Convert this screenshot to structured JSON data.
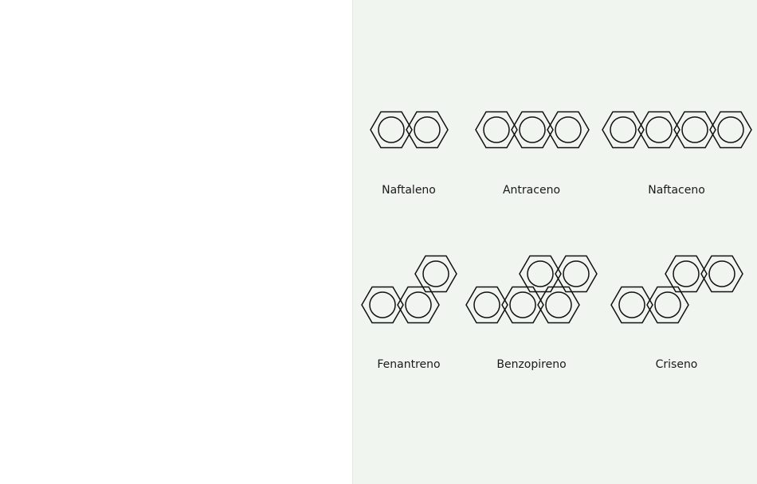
{
  "diagram": {
    "molecules": [
      {
        "id": "naftaleno",
        "name": "Naftaleno"
      },
      {
        "id": "antraceno",
        "name": "Antraceno"
      },
      {
        "id": "naftaceno",
        "name": "Naftaceno"
      },
      {
        "id": "fenantreno",
        "name": "Fenantreno"
      },
      {
        "id": "benzopireno",
        "name": "Benzopireno"
      },
      {
        "id": "criseno",
        "name": "Criseno"
      }
    ],
    "colors": {
      "panel_background": "#f0f5f0",
      "stroke": "#111111"
    }
  }
}
